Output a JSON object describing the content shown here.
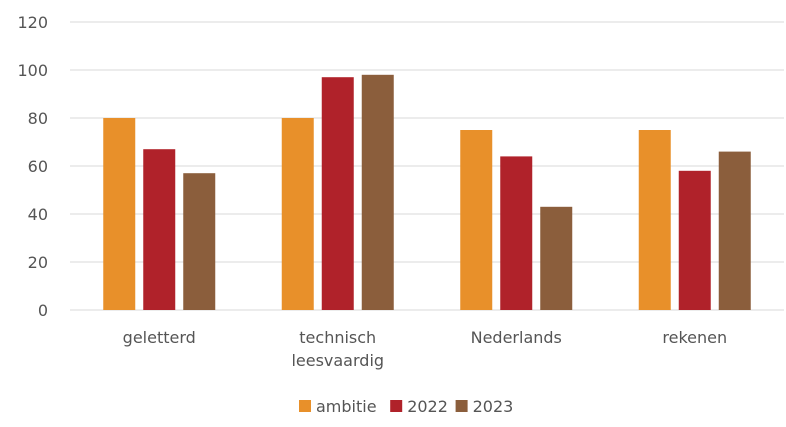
{
  "chart_data": {
    "type": "bar",
    "title": "",
    "xlabel": "",
    "ylabel": "",
    "categories": [
      [
        "geletterd"
      ],
      [
        "technisch",
        "leesvaardig"
      ],
      [
        "Nederlands"
      ],
      [
        "rekenen"
      ]
    ],
    "series": [
      {
        "name": "ambitie",
        "color": "#E8902A",
        "values": [
          80,
          80,
          75,
          75
        ]
      },
      {
        "name": "2022",
        "color": "#B0222A",
        "values": [
          67,
          97,
          64,
          58
        ]
      },
      {
        "name": "2023",
        "color": "#8B5E3C",
        "values": [
          57,
          98,
          43,
          66
        ]
      }
    ],
    "ylim": [
      0,
      120
    ],
    "yticks": [
      0,
      20,
      40,
      60,
      80,
      100,
      120
    ],
    "grid": true,
    "legend_position": "bottom"
  }
}
